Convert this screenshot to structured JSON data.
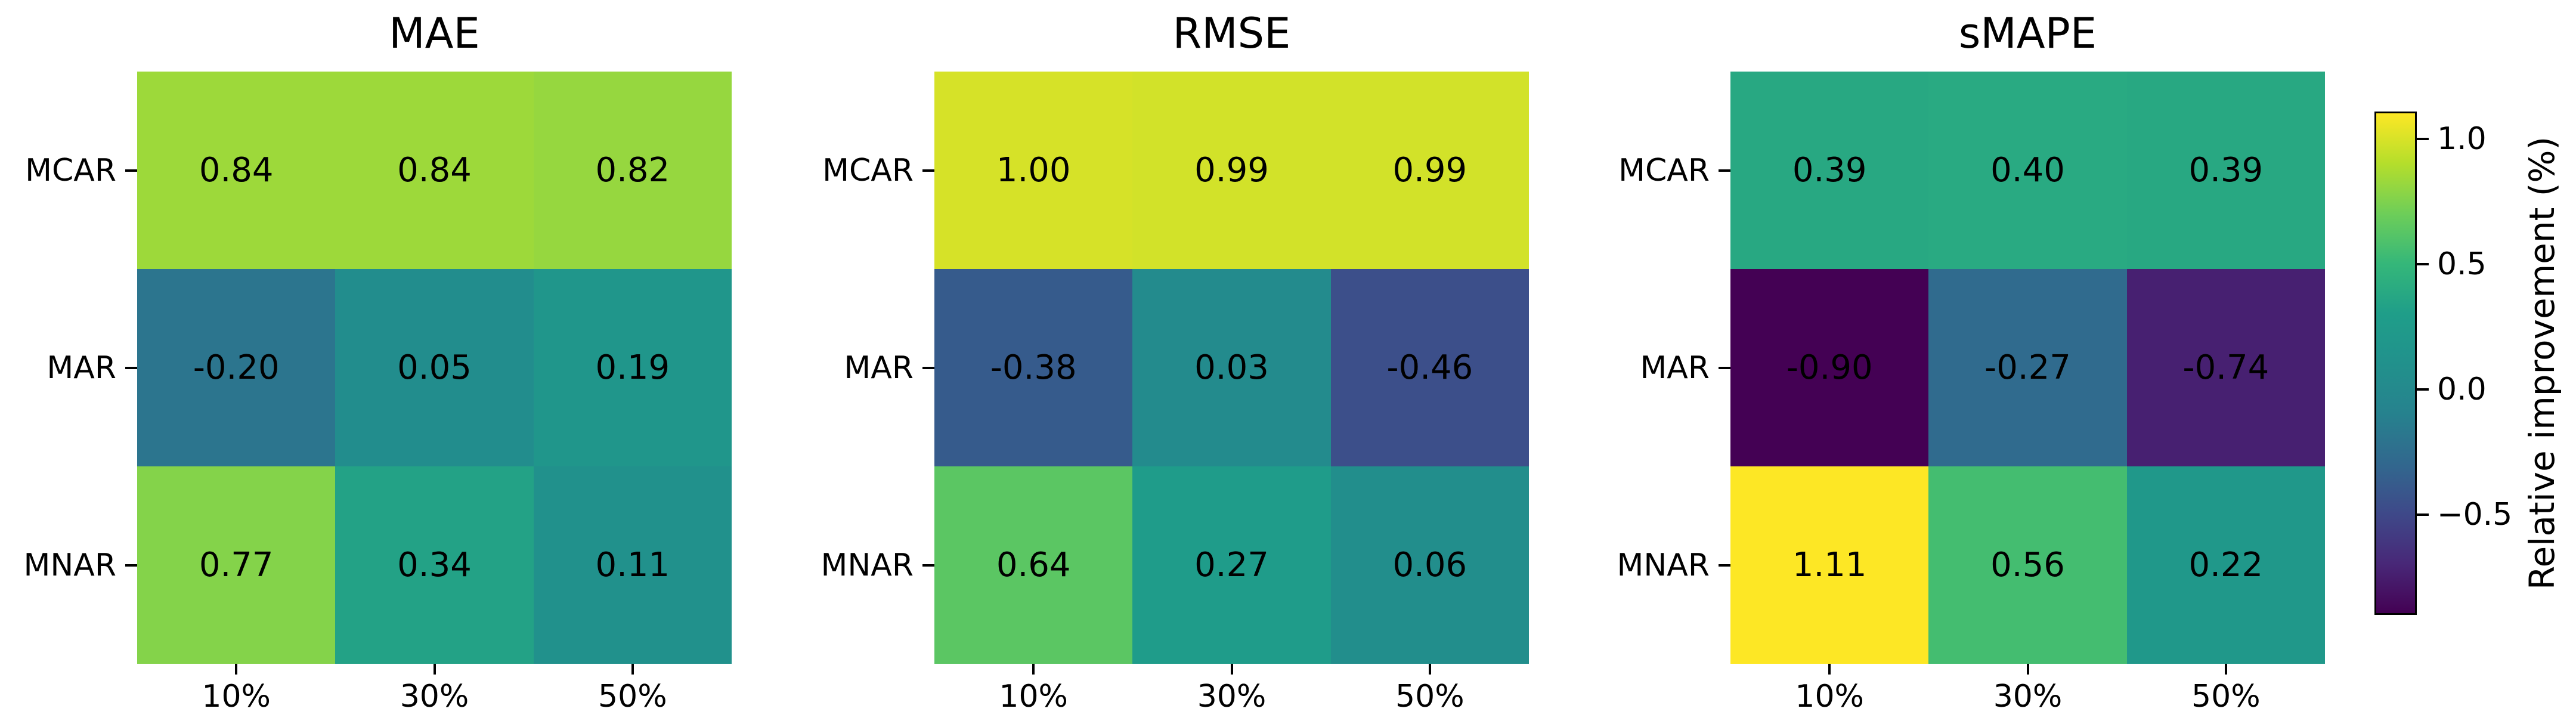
{
  "chart_data": {
    "type": "heatmap",
    "rows": [
      "MCAR",
      "MAR",
      "MNAR"
    ],
    "columns": [
      "10%",
      "30%",
      "50%"
    ],
    "panels": [
      {
        "title": "MAE",
        "values": [
          [
            0.84,
            0.84,
            0.82
          ],
          [
            -0.2,
            0.05,
            0.19
          ],
          [
            0.77,
            0.34,
            0.11
          ]
        ],
        "labels": [
          [
            "0.84",
            "0.84",
            "0.82"
          ],
          [
            "-0.20",
            "0.05",
            "0.19"
          ],
          [
            "0.77",
            "0.34",
            "0.11"
          ]
        ]
      },
      {
        "title": "RMSE",
        "values": [
          [
            1.0,
            0.99,
            0.99
          ],
          [
            -0.38,
            0.03,
            -0.46
          ],
          [
            0.64,
            0.27,
            0.06
          ]
        ],
        "labels": [
          [
            "1.00",
            "0.99",
            "0.99"
          ],
          [
            "-0.38",
            "0.03",
            "-0.46"
          ],
          [
            "0.64",
            "0.27",
            "0.06"
          ]
        ]
      },
      {
        "title": "sMAPE",
        "values": [
          [
            0.39,
            0.4,
            0.39
          ],
          [
            -0.9,
            -0.27,
            -0.74
          ],
          [
            1.11,
            0.56,
            0.22
          ]
        ],
        "labels": [
          [
            "0.39",
            "0.40",
            "0.39"
          ],
          [
            "-0.90",
            "-0.27",
            "-0.74"
          ],
          [
            "1.11",
            "0.56",
            "0.22"
          ]
        ]
      }
    ],
    "colormap": "viridis",
    "clim": [
      -0.9,
      1.11
    ],
    "annotation_text_color": "#000000",
    "colorbar": {
      "label": "Relative improvement (%)",
      "tick_labels": [
        "1.0",
        "0.5",
        "0.0",
        "−0.5"
      ],
      "tick_values": [
        1.0,
        0.5,
        0.0,
        -0.5
      ]
    },
    "layout_hints": {
      "legend": "none",
      "grid": false,
      "colorbar_position": "right"
    }
  }
}
